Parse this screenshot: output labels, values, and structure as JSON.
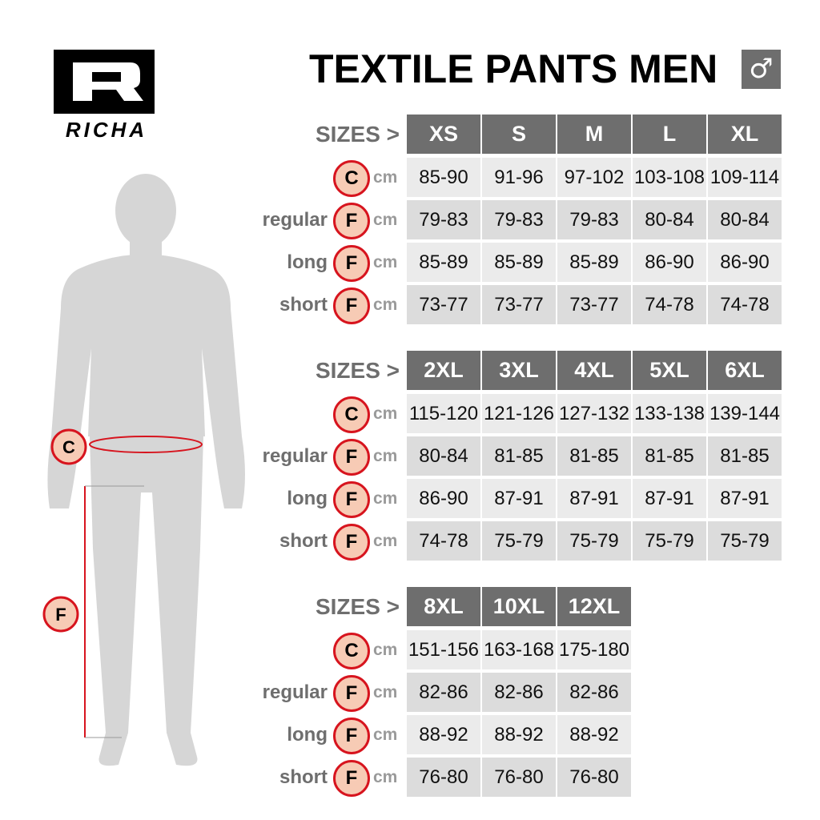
{
  "brand": {
    "name": "RICHA",
    "logo_letter": "R"
  },
  "title": "TEXTILE PANTS MEN",
  "gender_icon": "male-symbol-icon",
  "colors": {
    "header": "#6e6e6e",
    "accent_red": "#d7141e",
    "badge_fill": "#f7cbb5",
    "row_light": "#ebebeb",
    "row_dark": "#dcdcdc"
  },
  "sizes_label": "SIZES >",
  "unit": "cm",
  "figure": {
    "markers": [
      "C",
      "F"
    ]
  },
  "rows_meta": [
    {
      "fit": "",
      "code": "C"
    },
    {
      "fit": "regular",
      "code": "F"
    },
    {
      "fit": "long",
      "code": "F"
    },
    {
      "fit": "short",
      "code": "F"
    }
  ],
  "tables": [
    {
      "sizes": [
        "XS",
        "S",
        "M",
        "L",
        "XL"
      ],
      "rows": [
        [
          "85-90",
          "91-96",
          "97-102",
          "103-108",
          "109-114"
        ],
        [
          "79-83",
          "79-83",
          "79-83",
          "80-84",
          "80-84"
        ],
        [
          "85-89",
          "85-89",
          "85-89",
          "86-90",
          "86-90"
        ],
        [
          "73-77",
          "73-77",
          "73-77",
          "74-78",
          "74-78"
        ]
      ]
    },
    {
      "sizes": [
        "2XL",
        "3XL",
        "4XL",
        "5XL",
        "6XL"
      ],
      "rows": [
        [
          "115-120",
          "121-126",
          "127-132",
          "133-138",
          "139-144"
        ],
        [
          "80-84",
          "81-85",
          "81-85",
          "81-85",
          "81-85"
        ],
        [
          "86-90",
          "87-91",
          "87-91",
          "87-91",
          "87-91"
        ],
        [
          "74-78",
          "75-79",
          "75-79",
          "75-79",
          "75-79"
        ]
      ]
    },
    {
      "sizes": [
        "8XL",
        "10XL",
        "12XL"
      ],
      "rows": [
        [
          "151-156",
          "163-168",
          "175-180"
        ],
        [
          "82-86",
          "82-86",
          "82-86"
        ],
        [
          "88-92",
          "88-92",
          "88-92"
        ],
        [
          "76-80",
          "76-80",
          "76-80"
        ]
      ]
    }
  ]
}
